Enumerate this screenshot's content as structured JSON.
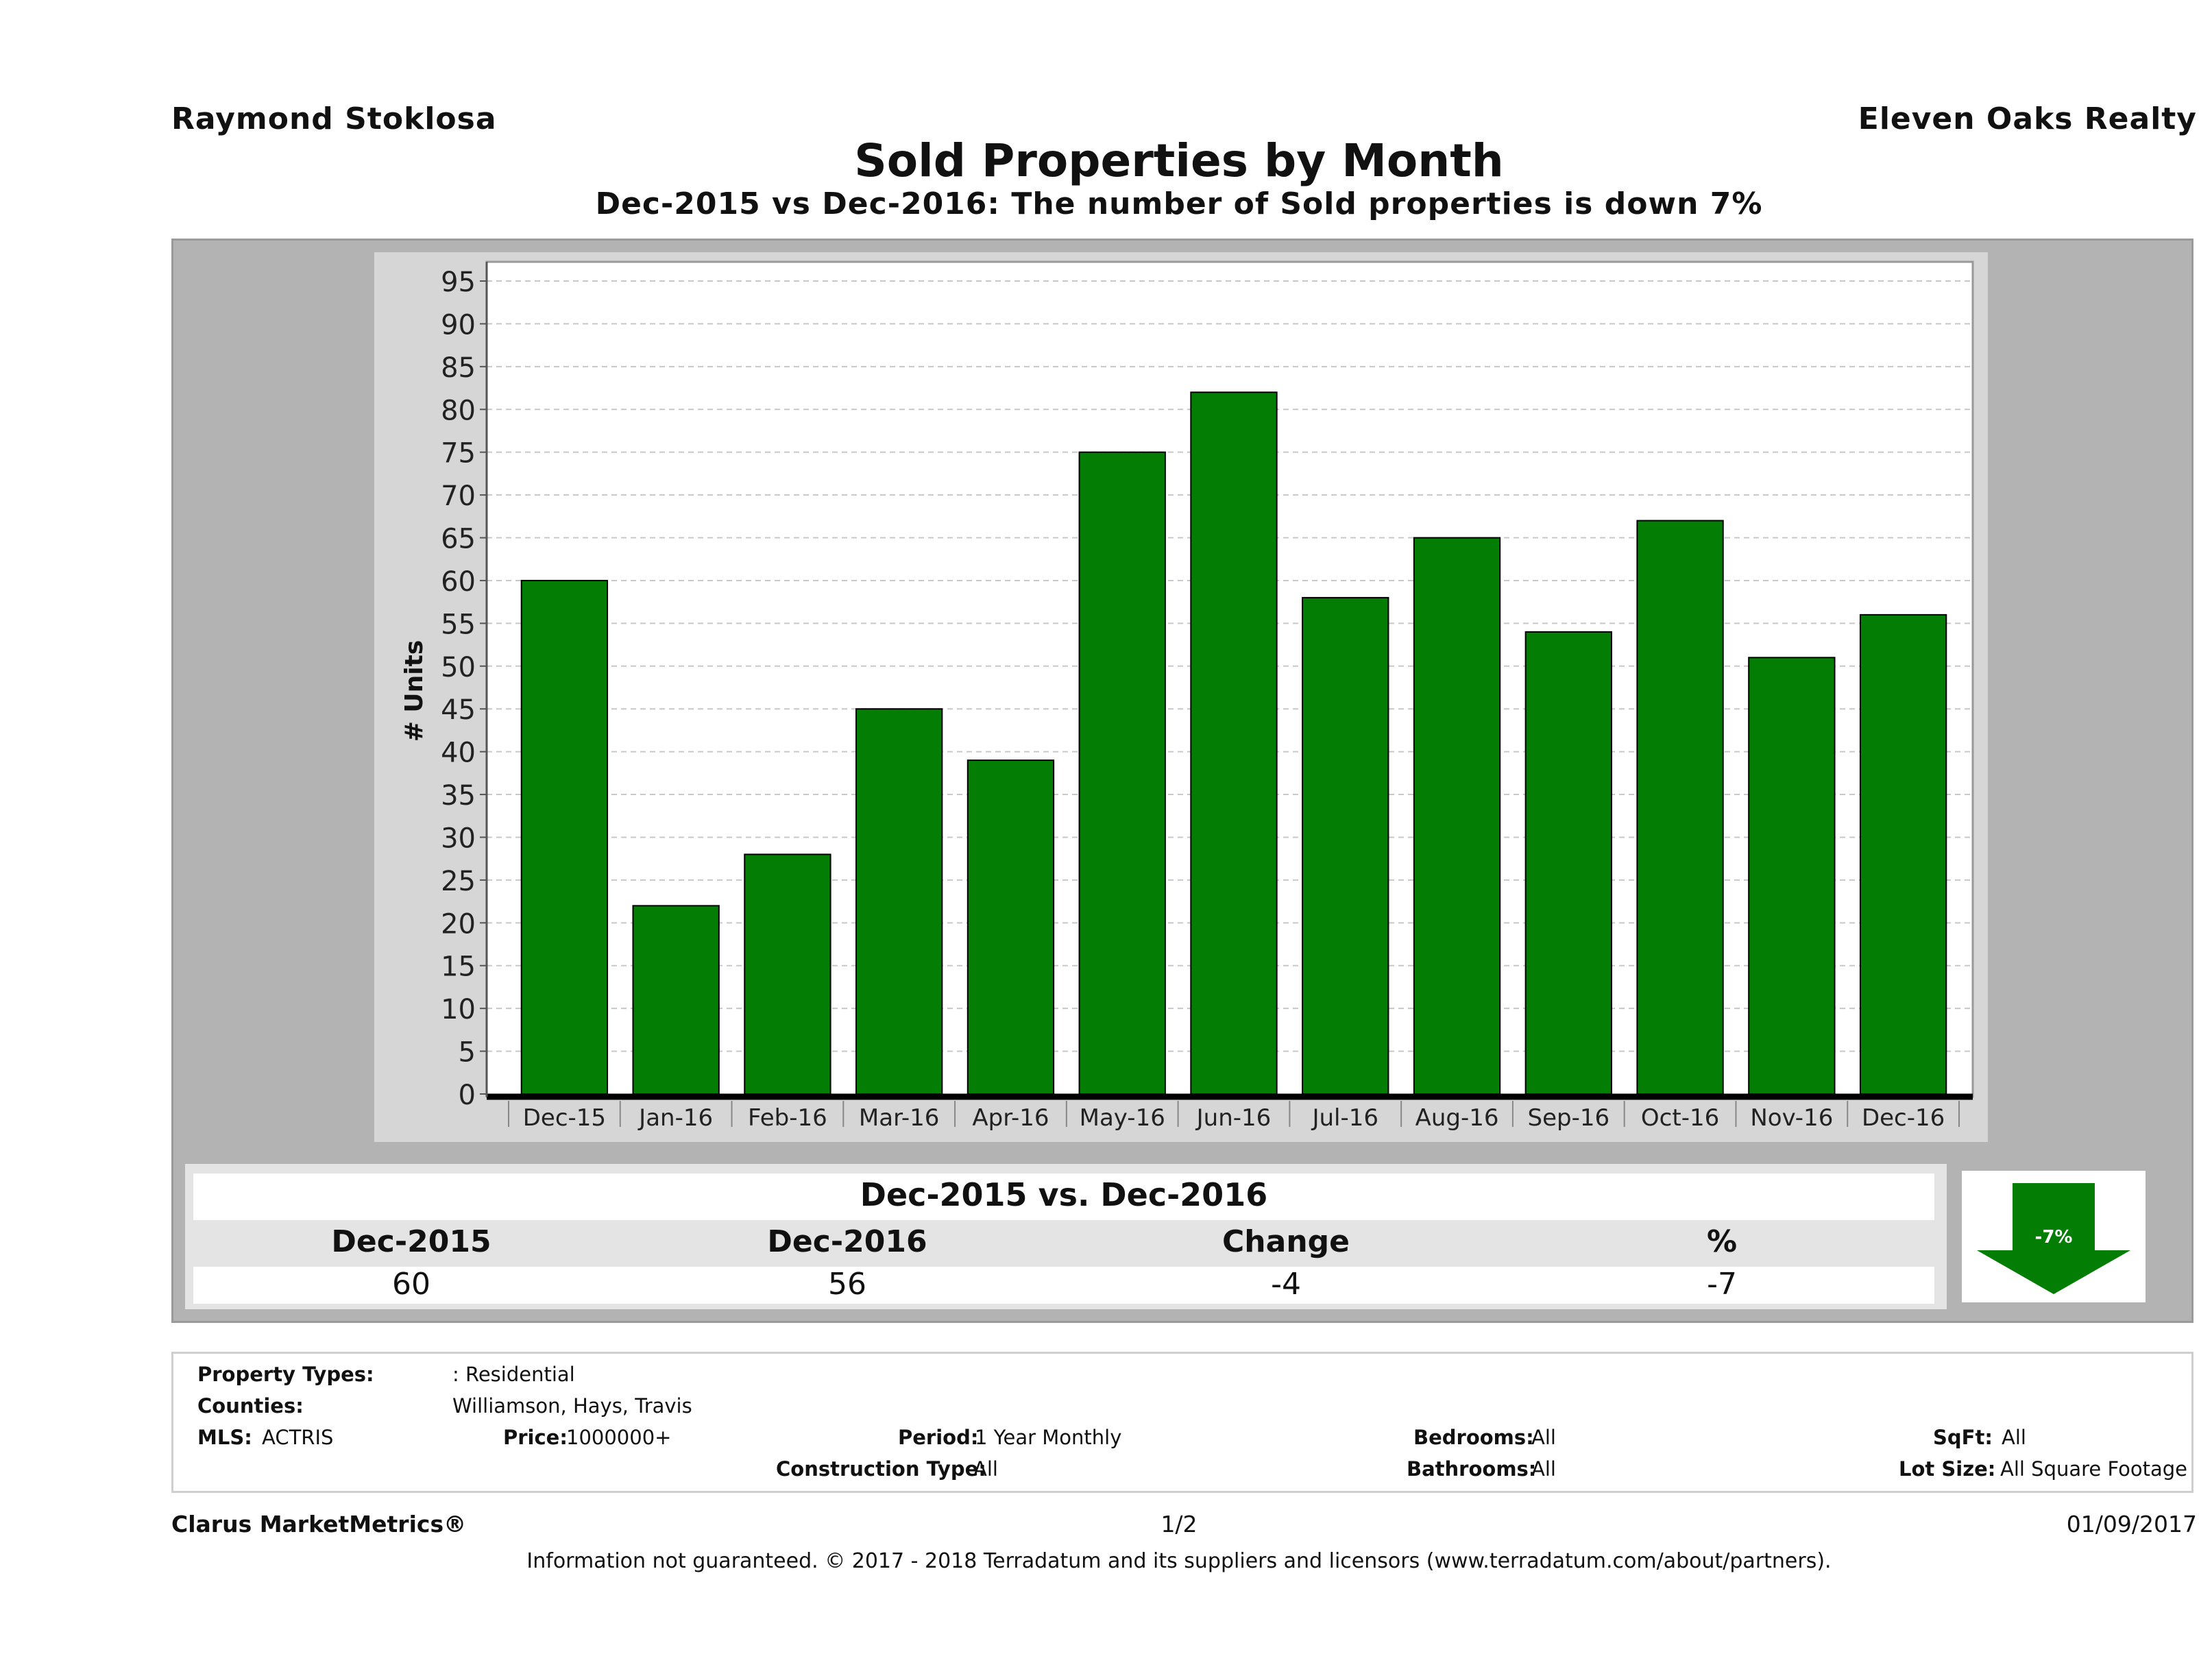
{
  "header": {
    "agent": "Raymond Stoklosa",
    "brokerage": "Eleven Oaks Realty",
    "title": "Sold Properties by Month",
    "subtitle": "Dec-2015 vs Dec-2016: The number of Sold  properties is down 7%"
  },
  "chart_data": {
    "type": "bar",
    "categories": [
      "Dec-15",
      "Jan-16",
      "Feb-16",
      "Mar-16",
      "Apr-16",
      "May-16",
      "Jun-16",
      "Jul-16",
      "Aug-16",
      "Sep-16",
      "Oct-16",
      "Nov-16",
      "Dec-16"
    ],
    "values": [
      60,
      22,
      28,
      45,
      39,
      75,
      82,
      58,
      65,
      54,
      67,
      51,
      56
    ],
    "ylabel": "# Units",
    "xlabel": "",
    "ylim": [
      0,
      95
    ],
    "yticks": [
      0,
      5,
      10,
      15,
      20,
      25,
      30,
      35,
      40,
      45,
      50,
      55,
      60,
      65,
      70,
      75,
      80,
      85,
      90,
      95
    ],
    "grid": true,
    "bar_color": "#037d03"
  },
  "summary": {
    "title": "Dec-2015 vs. Dec-2016",
    "headers": [
      "Dec-2015",
      "Dec-2016",
      "Change",
      "%"
    ],
    "values": [
      "60",
      "56",
      "-4",
      "-7"
    ],
    "arrow_label": "-7%",
    "arrow_color": "#037d03"
  },
  "criteria": {
    "property_types_label": "Property Types:",
    "property_types_value": ": Residential",
    "counties_label": "Counties:",
    "counties_value": "Williamson, Hays, Travis",
    "mls_label": "MLS:",
    "mls_value": "ACTRIS",
    "price_label": "Price:",
    "price_value": "1000000+",
    "period_label": "Period:",
    "period_value": "1 Year Monthly",
    "construction_label": "Construction Type:",
    "construction_value": "All",
    "bedrooms_label": "Bedrooms:",
    "bedrooms_value": "All",
    "bathrooms_label": "Bathrooms:",
    "bathrooms_value": "All",
    "sqft_label": "SqFt:",
    "sqft_value": "All",
    "lotsize_label": "Lot Size:",
    "lotsize_value": "All Square Footage"
  },
  "footer": {
    "brand": "Clarus MarketMetrics®",
    "page": "1/2",
    "date": "01/09/2017",
    "disclaimer": "Information not guaranteed. © 2017 - 2018 Terradatum and its suppliers and licensors (www.terradatum.com/about/partners)."
  }
}
